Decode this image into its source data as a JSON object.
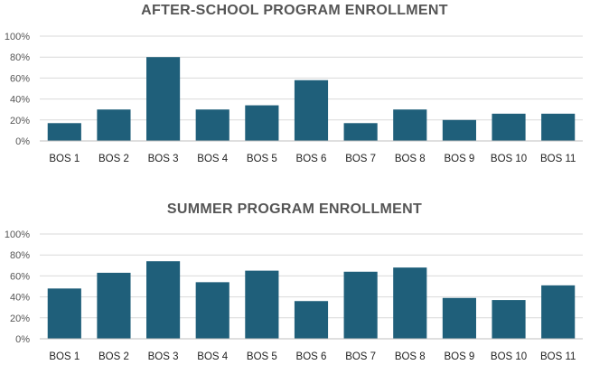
{
  "chart_data": [
    {
      "type": "bar",
      "title": "AFTER-SCHOOL PROGRAM ENROLLMENT",
      "categories": [
        "BOS 1",
        "BOS 2",
        "BOS 3",
        "BOS 4",
        "BOS 5",
        "BOS 6",
        "BOS 7",
        "BOS 8",
        "BOS 9",
        "BOS 10",
        "BOS 11"
      ],
      "values": [
        17,
        30,
        80,
        30,
        34,
        58,
        17,
        30,
        20,
        26,
        26
      ],
      "yticks": [
        "0%",
        "20%",
        "40%",
        "60%",
        "80%",
        "100%"
      ],
      "ylim": [
        0,
        100
      ],
      "grid": true,
      "bar_color": "#1f5f7a"
    },
    {
      "type": "bar",
      "title": "SUMMER PROGRAM ENROLLMENT",
      "categories": [
        "BOS 1",
        "BOS 2",
        "BOS 3",
        "BOS 4",
        "BOS 5",
        "BOS 6",
        "BOS 7",
        "BOS 8",
        "BOS 9",
        "BOS 10",
        "BOS 11"
      ],
      "values": [
        48,
        63,
        74,
        54,
        65,
        36,
        64,
        68,
        39,
        37,
        51
      ],
      "yticks": [
        "0%",
        "20%",
        "40%",
        "60%",
        "80%",
        "100%"
      ],
      "ylim": [
        0,
        100
      ],
      "grid": true,
      "bar_color": "#1f5f7a"
    }
  ]
}
